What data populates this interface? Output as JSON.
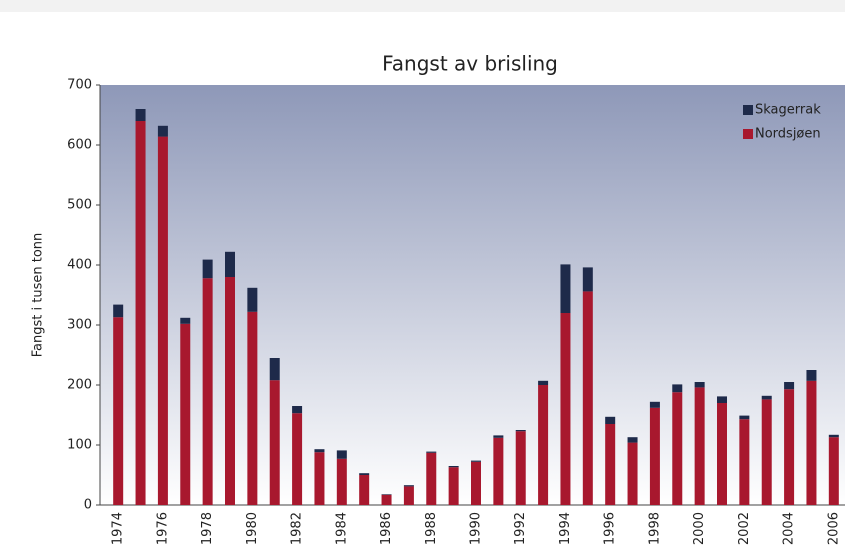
{
  "chart_data": {
    "type": "stacked-bar",
    "title": "Fangst av brisling",
    "y_label": "Fangst i tusen tonn",
    "categories": [
      "1974",
      null,
      "1976",
      null,
      "1978",
      null,
      "1980",
      null,
      "1982",
      null,
      "1984",
      null,
      "1986",
      null,
      "1988",
      null,
      "1990",
      null,
      "1992",
      null,
      "1994",
      null,
      "1996",
      null,
      "1998",
      null,
      "2000",
      null,
      "2002",
      null,
      "2004",
      null,
      "2006"
    ],
    "series": [
      {
        "name": "Nordsjøen",
        "color": "#a8182e",
        "values": [
          313,
          640,
          614,
          302,
          378,
          380,
          322,
          208,
          153,
          88,
          77,
          50,
          17,
          31,
          87,
          63,
          72,
          112,
          123,
          200,
          320,
          356,
          135,
          104,
          162,
          188,
          196,
          170,
          143,
          176,
          193,
          207,
          113
        ]
      },
      {
        "name": "Skagerrak",
        "color": "#1e2a4a",
        "values": [
          21,
          20,
          18,
          10,
          31,
          42,
          40,
          37,
          12,
          5,
          14,
          3,
          1,
          2,
          2,
          2,
          2,
          4,
          2,
          7,
          81,
          40,
          12,
          9,
          10,
          13,
          9,
          11,
          6,
          6,
          12,
          18,
          4
        ]
      }
    ],
    "ylim": [
      0,
      700
    ],
    "yticks": [
      0,
      100,
      200,
      300,
      400,
      500,
      600,
      700
    ],
    "legend": "upper right"
  }
}
